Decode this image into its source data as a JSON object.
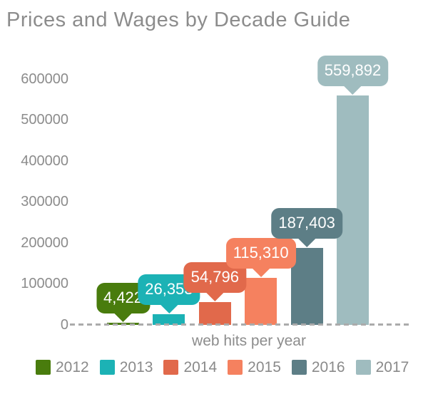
{
  "title": "Prices and Wages by Decade Guide",
  "x_axis_label": "web hits per year",
  "chart_data": {
    "type": "bar",
    "title": "Prices and Wages by Decade Guide",
    "xlabel": "web hits per year",
    "ylabel": "",
    "ylim": [
      0,
      600000
    ],
    "yticks": [
      "0",
      "100000",
      "200000",
      "300000",
      "400000",
      "500000",
      "600000"
    ],
    "grid": false,
    "legend_position": "bottom",
    "categories": [
      "2012",
      "2013",
      "2014",
      "2015",
      "2016",
      "2017"
    ],
    "values": [
      4422,
      26353,
      54796,
      115310,
      187403,
      559892
    ],
    "value_labels": [
      "4,422",
      "26,353",
      "54,796",
      "115,310",
      "187,403",
      "559,892"
    ],
    "colors": [
      "#497c0d",
      "#1cb2b5",
      "#e1694b",
      "#f5815f",
      "#5d7e86",
      "#9fbcbf"
    ]
  },
  "styles": {
    "text_gray": "#8c8c8c",
    "callout_text": "#ffffff",
    "baseline_dash": "#ababab"
  }
}
